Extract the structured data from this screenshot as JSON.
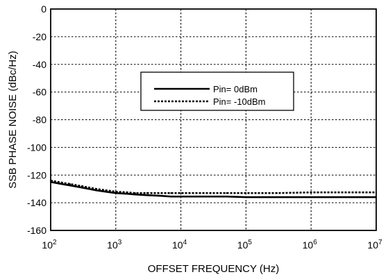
{
  "chart_data": {
    "type": "line",
    "title": "",
    "xlabel": "OFFSET FREQUENCY (Hz)",
    "ylabel": "SSB PHASE NOISE (dBc/Hz)",
    "x_scale": "log",
    "xlim": [
      100,
      10000000
    ],
    "ylim": [
      -160,
      0
    ],
    "grid": true,
    "x_ticks": [
      {
        "base": "10",
        "exp": "2"
      },
      {
        "base": "10",
        "exp": "3"
      },
      {
        "base": "10",
        "exp": "4"
      },
      {
        "base": "10",
        "exp": "5"
      },
      {
        "base": "10",
        "exp": "6"
      },
      {
        "base": "10",
        "exp": "7"
      }
    ],
    "y_ticks": [
      "0",
      "-20",
      "-40",
      "-60",
      "-80",
      "-100",
      "-120",
      "-140",
      "-160"
    ],
    "legend_position": "center",
    "series": [
      {
        "name": "Pin= 0dBm",
        "style": "solid",
        "color": "#000000",
        "x": [
          100,
          150,
          200,
          300,
          500,
          700,
          1000,
          1500,
          2000,
          3000,
          5000,
          7000,
          10000,
          20000,
          50000,
          100000,
          300000,
          1000000,
          3000000,
          10000000
        ],
        "y": [
          -125,
          -126.5,
          -127.5,
          -129,
          -131,
          -132,
          -133,
          -133.5,
          -134,
          -134.5,
          -135,
          -135.5,
          -135.5,
          -135.5,
          -135.5,
          -136,
          -136,
          -136,
          -136,
          -136
        ]
      },
      {
        "name": "Pin= -10dBm",
        "style": "dashed",
        "color": "#000000",
        "x": [
          100,
          150,
          200,
          300,
          500,
          700,
          1000,
          1500,
          2000,
          3000,
          5000,
          7000,
          10000,
          20000,
          50000,
          100000,
          300000,
          1000000,
          3000000,
          10000000
        ],
        "y": [
          -124,
          -125.5,
          -126.5,
          -128,
          -130,
          -131,
          -132,
          -132.5,
          -133,
          -133,
          -133,
          -133,
          -133,
          -133,
          -133,
          -133,
          -133,
          -132.5,
          -132.5,
          -132.5
        ]
      }
    ]
  }
}
